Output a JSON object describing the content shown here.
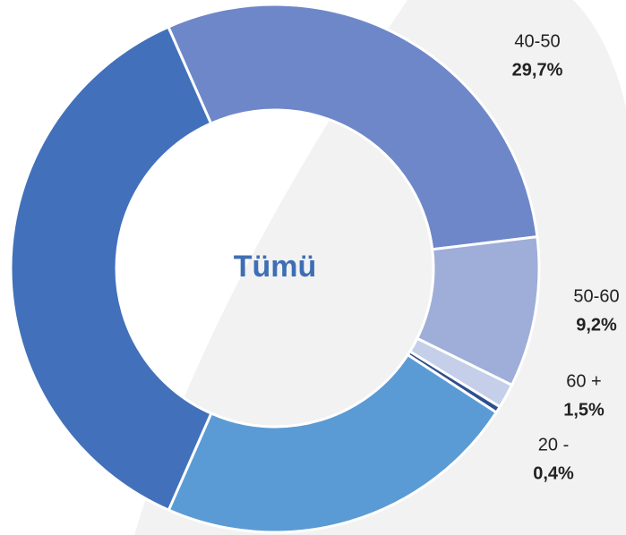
{
  "chart_data": {
    "type": "donut",
    "center_label": "Tümü",
    "categories": [
      "40-50",
      "50-60",
      "60 +",
      "20 -",
      null,
      null
    ],
    "values": [
      29.7,
      9.2,
      1.5,
      0.4,
      22.4,
      36.8
    ],
    "value_labels": [
      "29,7%",
      "9,2%",
      "1,5%",
      "0,4%",
      null,
      null
    ],
    "colors": [
      "#6e87c9",
      "#9eaed9",
      "#c5cfe9",
      "#2e4f8f",
      "#5b9bd5",
      "#4270bb"
    ]
  }
}
